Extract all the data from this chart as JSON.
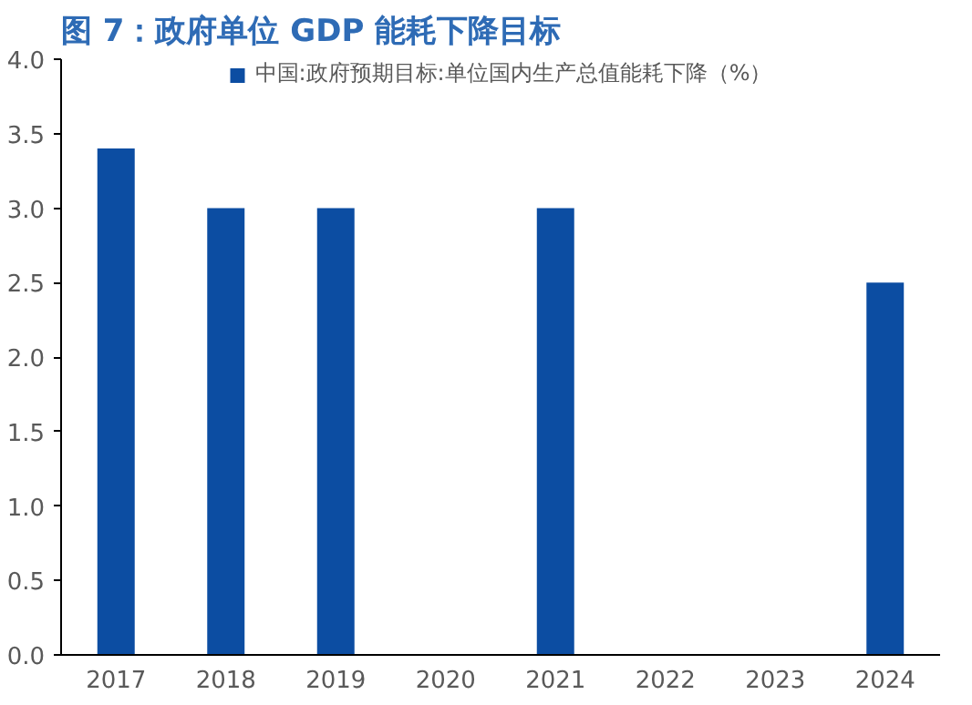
{
  "chart_data": {
    "type": "bar",
    "title": "图 7：政府单位 GDP 能耗下降目标",
    "categories": [
      "2017",
      "2018",
      "2019",
      "2020",
      "2021",
      "2022",
      "2023",
      "2024"
    ],
    "series": [
      {
        "name": "中国:政府预期目标:单位国内生产总值能耗下降（%）",
        "color": "#0c4da2",
        "values": [
          3.4,
          3.0,
          3.0,
          null,
          3.0,
          null,
          null,
          2.5
        ]
      }
    ],
    "ylim": [
      0,
      4
    ],
    "yticks": [
      {
        "value": 0,
        "label": "0.0"
      },
      {
        "value": 0.5,
        "label": "0.5"
      },
      {
        "value": 1,
        "label": "1.0"
      },
      {
        "value": 1.5,
        "label": "1.5"
      },
      {
        "value": 2,
        "label": "2.0"
      },
      {
        "value": 2.5,
        "label": "2.5"
      },
      {
        "value": 3,
        "label": "3.0"
      },
      {
        "value": 3.5,
        "label": "3.5"
      },
      {
        "value": 4,
        "label": "4.0"
      }
    ],
    "grid": false,
    "legend": "top"
  }
}
